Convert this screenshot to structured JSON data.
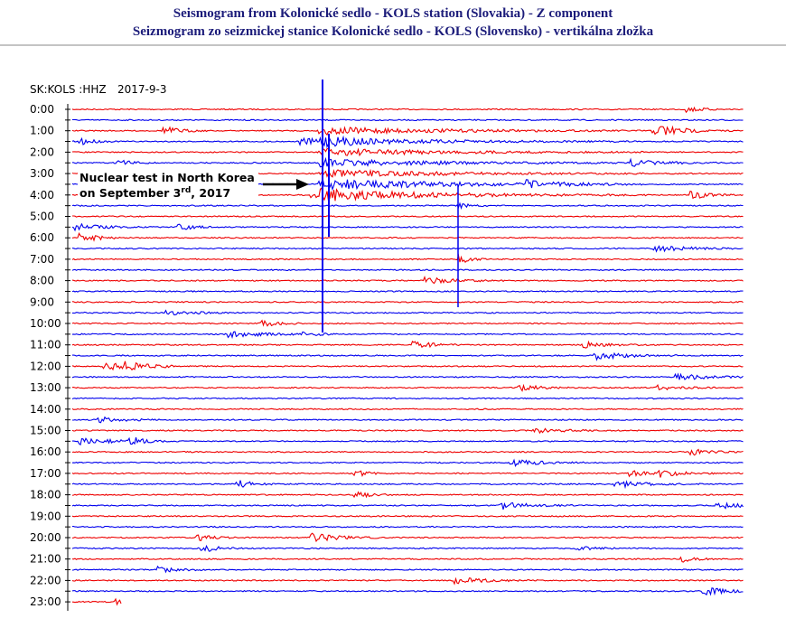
{
  "header": {
    "title": "Seismogram from Kolonické sedlo - KOLS station (Slovakia) - Z component",
    "subtitle": "Seizmogram zo seizmickej stanice Kolonické sedlo - KOLS (Slovensko) - vertikálna zložka"
  },
  "plot": {
    "station": "SK:KOLS :HHZ",
    "date": "2017-9-3",
    "hour_labels": [
      "0:00",
      "1:00",
      "2:00",
      "3:00",
      "4:00",
      "5:00",
      "6:00",
      "7:00",
      "8:00",
      "9:00",
      "10:00",
      "11:00",
      "12:00",
      "13:00",
      "14:00",
      "15:00",
      "16:00",
      "17:00",
      "18:00",
      "19:00",
      "20:00",
      "21:00",
      "22:00",
      "23:00"
    ],
    "annotation": {
      "line1": "Nuclear test in North Korea",
      "line2_start": "on September 3",
      "line2_sup": "rd",
      "line2_end": ", 2017"
    }
  }
}
